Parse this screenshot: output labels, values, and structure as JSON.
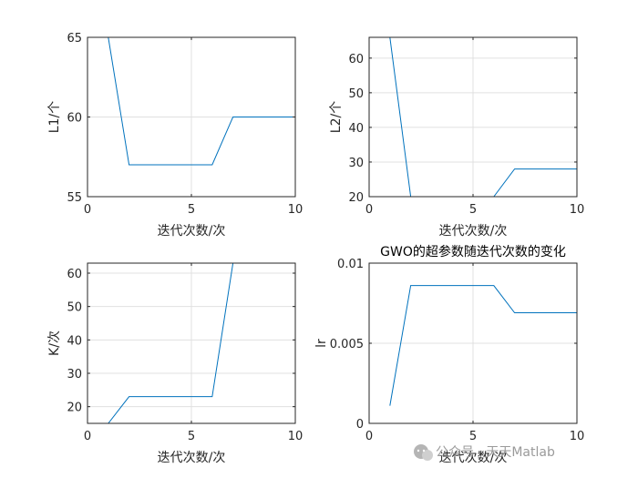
{
  "chart_data": [
    {
      "type": "line",
      "title": "",
      "xlabel": "迭代次数/次",
      "ylabel": "L1/个",
      "xlim": [
        0,
        10
      ],
      "ylim": [
        55,
        65
      ],
      "xticks": [
        0,
        5,
        10
      ],
      "yticks": [
        55,
        60,
        65
      ],
      "grid": true,
      "color": "#0072BD",
      "x": [
        1,
        2,
        3,
        4,
        5,
        6,
        7,
        8,
        9,
        10
      ],
      "y": [
        65,
        57,
        57,
        57,
        57,
        57,
        60,
        60,
        60,
        60
      ]
    },
    {
      "type": "line",
      "title": "",
      "xlabel": "迭代次数/次",
      "ylabel": "L2/个",
      "xlim": [
        0,
        10
      ],
      "ylim": [
        20,
        66
      ],
      "xticks": [
        0,
        5,
        10
      ],
      "yticks": [
        20,
        30,
        40,
        50,
        60
      ],
      "grid": true,
      "color": "#0072BD",
      "x": [
        1,
        2,
        3,
        4,
        5,
        6,
        7,
        8,
        9,
        10
      ],
      "y": [
        66,
        20,
        20,
        20,
        20,
        20,
        28,
        28,
        28,
        28
      ]
    },
    {
      "type": "line",
      "title": "",
      "xlabel": "迭代次数/次",
      "ylabel": "K/次",
      "xlim": [
        0,
        10
      ],
      "ylim": [
        15,
        63
      ],
      "xticks": [
        0,
        5,
        10
      ],
      "yticks": [
        20,
        30,
        40,
        50,
        60
      ],
      "grid": true,
      "color": "#0072BD",
      "x": [
        1,
        2,
        3,
        4,
        5,
        6,
        7,
        8,
        9,
        10
      ],
      "y": [
        15,
        23,
        23,
        23,
        23,
        23,
        63,
        63,
        63,
        63
      ]
    },
    {
      "type": "line",
      "title": "GWO的超参数随迭代次数的变化",
      "xlabel": "迭代次数/次",
      "ylabel": "lr",
      "xlim": [
        0,
        10
      ],
      "ylim": [
        0,
        0.01
      ],
      "xticks": [
        0,
        5,
        10
      ],
      "yticks": [
        0,
        0.005,
        0.01
      ],
      "ytick_labels": [
        "0",
        "0.005",
        "0.01"
      ],
      "grid": true,
      "color": "#0072BD",
      "x": [
        1,
        2,
        3,
        4,
        5,
        6,
        7,
        8,
        9,
        10
      ],
      "y": [
        0.0011,
        0.0086,
        0.0086,
        0.0086,
        0.0086,
        0.0086,
        0.0069,
        0.0069,
        0.0069,
        0.0069
      ]
    }
  ],
  "watermark": {
    "text": "公众号 · 天天Matlab",
    "icon": "wechat-icon"
  }
}
